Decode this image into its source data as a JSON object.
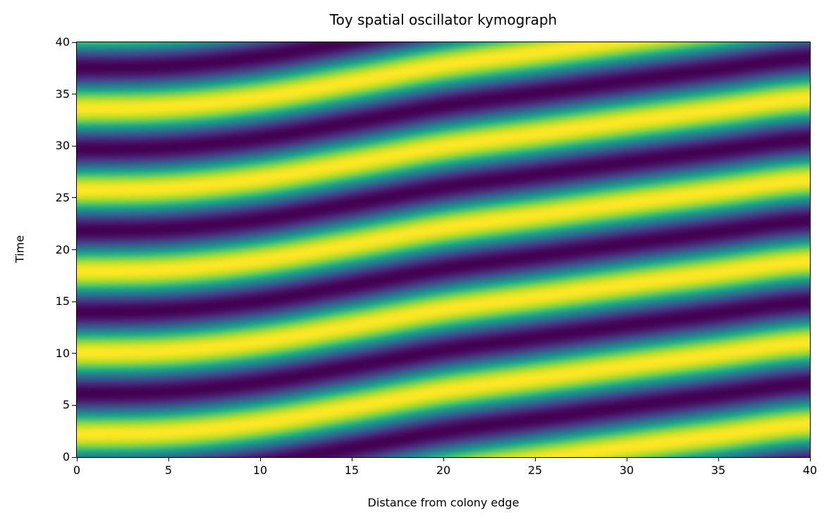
{
  "chart_data": {
    "type": "heatmap",
    "title": "Toy spatial oscillator kymograph",
    "xlabel": "Distance from colony edge",
    "ylabel": "Time",
    "xlim": [
      0,
      40
    ],
    "ylim": [
      0,
      40
    ],
    "xticks": [
      "0",
      "5",
      "10",
      "15",
      "20",
      "25",
      "30",
      "35",
      "40"
    ],
    "yticks": [
      "0",
      "5",
      "10",
      "15",
      "20",
      "25",
      "30",
      "35",
      "40"
    ],
    "colormap": "viridis",
    "value_range": [
      0,
      1
    ],
    "oscillation_period": 7.85,
    "peak_time_at_edge": 2.2,
    "phase_lag_profile": {
      "x": [
        0,
        5,
        10,
        15,
        20,
        25,
        30,
        35,
        40
      ],
      "lag": [
        0,
        0.2,
        1.1,
        2.6,
        4.2,
        5.4,
        6.6,
        7.75,
        8.85
      ]
    }
  }
}
